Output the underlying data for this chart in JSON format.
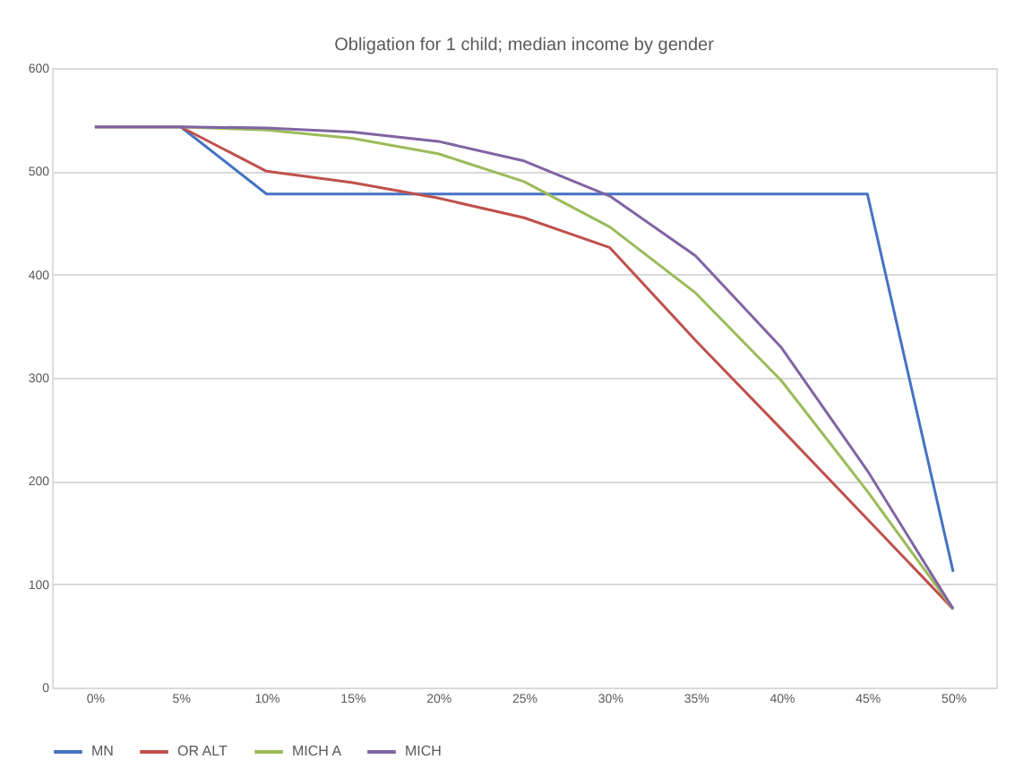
{
  "chart_data": {
    "type": "line",
    "title": "Obligation for 1 child; median income by gender",
    "categories": [
      "0%",
      "5%",
      "10%",
      "15%",
      "20%",
      "25%",
      "30%",
      "35%",
      "40%",
      "45%",
      "50%"
    ],
    "series": [
      {
        "name": "MN",
        "color": "#4472c4",
        "values": [
          543,
          543,
          478,
          478,
          478,
          478,
          478,
          478,
          478,
          478,
          112
        ]
      },
      {
        "name": "OR ALT",
        "color": "#c0504d",
        "values": [
          543,
          543,
          500,
          489,
          474,
          455,
          426,
          336,
          250,
          163,
          76
        ]
      },
      {
        "name": "MICH A",
        "color": "#9bbb59",
        "values": [
          543,
          543,
          540,
          532,
          517,
          490,
          446,
          382,
          297,
          190,
          76
        ]
      },
      {
        "name": "MICH",
        "color": "#8064a2",
        "values": [
          543,
          543,
          542,
          538,
          529,
          510,
          476,
          418,
          329,
          210,
          76
        ]
      }
    ],
    "ylim": [
      0,
      600
    ],
    "yticks": [
      0,
      100,
      200,
      300,
      400,
      500,
      600
    ],
    "grid": "y",
    "legend": "bottom",
    "marker": "none",
    "line_style": "solid"
  }
}
